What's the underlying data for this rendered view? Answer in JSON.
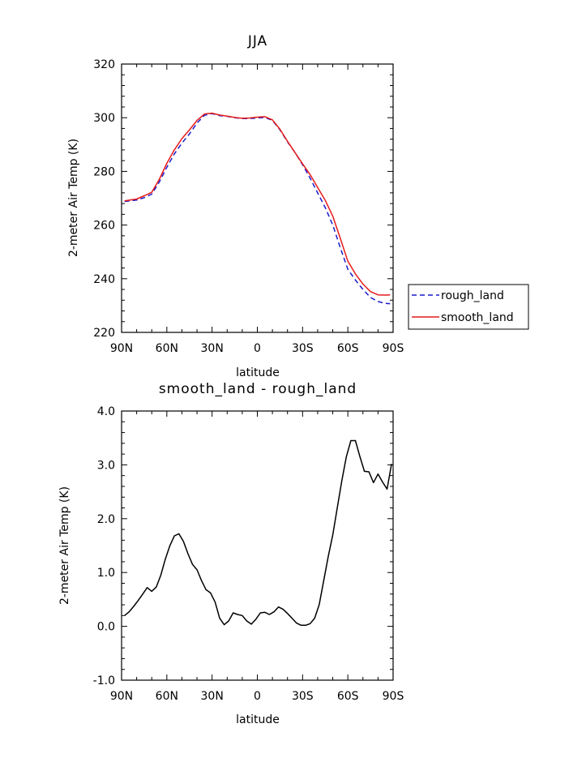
{
  "chart_data": [
    {
      "type": "line",
      "title": "JJA",
      "xlabel": "latitude",
      "ylabel": "2-meter Air Temp (K)",
      "xlim": [
        90,
        -90
      ],
      "ylim": [
        220,
        320
      ],
      "x_tick_values": [
        90,
        60,
        30,
        0,
        -30,
        -60,
        -90
      ],
      "x_tick_labels": [
        "90N",
        "60N",
        "30N",
        "0",
        "30S",
        "60S",
        "90S"
      ],
      "y_tick_values": [
        220,
        240,
        260,
        280,
        300,
        320
      ],
      "y_tick_labels": [
        "220",
        "240",
        "260",
        "280",
        "300",
        "320"
      ],
      "grid": false,
      "legend_position": "right",
      "series": [
        {
          "name": "rough_land",
          "color": "#1a1acc",
          "dash": "dashed",
          "x": [
            88,
            80,
            75,
            70,
            65,
            60,
            55,
            50,
            45,
            40,
            35,
            30,
            25,
            20,
            15,
            10,
            5,
            0,
            -5,
            -10,
            -15,
            -20,
            -25,
            -30,
            -35,
            -40,
            -45,
            -50,
            -55,
            -60,
            -65,
            -70,
            -75,
            -80,
            -85,
            -88
          ],
          "y": [
            268.8,
            269.3,
            270.2,
            271.5,
            276.0,
            281.5,
            286.5,
            290.5,
            294.0,
            298.0,
            300.9,
            301.5,
            300.8,
            300.5,
            300.0,
            299.7,
            299.7,
            299.9,
            300.1,
            299.0,
            295.5,
            291.0,
            287.0,
            282.5,
            277.5,
            272.0,
            266.5,
            260.0,
            251.5,
            243.5,
            239.5,
            236.0,
            233.0,
            231.5,
            230.8,
            230.7
          ]
        },
        {
          "name": "smooth_land",
          "color": "#e61a1a",
          "dash": "solid",
          "x": [
            88,
            80,
            75,
            70,
            65,
            60,
            55,
            50,
            45,
            40,
            35,
            30,
            25,
            20,
            15,
            10,
            5,
            0,
            -5,
            -10,
            -15,
            -20,
            -25,
            -30,
            -35,
            -40,
            -45,
            -50,
            -55,
            -60,
            -65,
            -70,
            -75,
            -80,
            -85,
            -88
          ],
          "y": [
            269.0,
            269.7,
            270.9,
            272.2,
            277.0,
            283.0,
            288.0,
            292.2,
            295.5,
            299.0,
            301.4,
            301.7,
            301.0,
            300.6,
            300.1,
            299.8,
            299.9,
            300.2,
            300.4,
            299.2,
            295.7,
            291.2,
            287.0,
            282.8,
            278.8,
            274.0,
            269.2,
            263.3,
            255.0,
            246.5,
            241.8,
            238.0,
            235.2,
            234.0,
            233.9,
            234.0
          ]
        }
      ],
      "legend": {
        "rough_label": "rough_land",
        "smooth_label": "smooth_land"
      }
    },
    {
      "type": "line",
      "title": "smooth_land - rough_land",
      "xlabel": "latitude",
      "ylabel": "2-meter Air Temp (K)",
      "xlim": [
        90,
        -90
      ],
      "ylim": [
        -1.0,
        4.0
      ],
      "x_tick_values": [
        90,
        60,
        30,
        0,
        -30,
        -60,
        -90
      ],
      "x_tick_labels": [
        "90N",
        "60N",
        "30N",
        "0",
        "30S",
        "60S",
        "90S"
      ],
      "y_tick_values": [
        -1.0,
        0.0,
        1.0,
        2.0,
        3.0,
        4.0
      ],
      "y_tick_labels": [
        "-1.0",
        "0.0",
        "1.0",
        "2.0",
        "3.0",
        "4.0"
      ],
      "grid": false,
      "series": [
        {
          "color": "#000000",
          "dash": "solid",
          "x": [
            88,
            85,
            82,
            79,
            76,
            73,
            70,
            67,
            64,
            61,
            58,
            55,
            52,
            49,
            46,
            43,
            40,
            37,
            34,
            31,
            28,
            25,
            22,
            19,
            16,
            13,
            10,
            7,
            4,
            1,
            -2,
            -5,
            -8,
            -11,
            -14,
            -17,
            -20,
            -23,
            -26,
            -29,
            -32,
            -35,
            -38,
            -41,
            -44,
            -47,
            -50,
            -53,
            -56,
            -59,
            -62,
            -65,
            -68,
            -71,
            -74,
            -77,
            -80,
            -83,
            -86,
            -89
          ],
          "y": [
            0.2,
            0.27,
            0.37,
            0.48,
            0.6,
            0.72,
            0.65,
            0.73,
            0.95,
            1.25,
            1.5,
            1.68,
            1.72,
            1.58,
            1.35,
            1.15,
            1.05,
            0.85,
            0.68,
            0.62,
            0.45,
            0.15,
            0.03,
            0.1,
            0.25,
            0.22,
            0.2,
            0.1,
            0.04,
            0.13,
            0.25,
            0.26,
            0.22,
            0.27,
            0.36,
            0.32,
            0.24,
            0.15,
            0.06,
            0.02,
            0.02,
            0.05,
            0.15,
            0.4,
            0.85,
            1.3,
            1.7,
            2.2,
            2.7,
            3.15,
            3.45,
            3.45,
            3.15,
            2.88,
            2.87,
            2.67,
            2.83,
            2.68,
            2.55,
            3.02
          ]
        }
      ]
    }
  ]
}
